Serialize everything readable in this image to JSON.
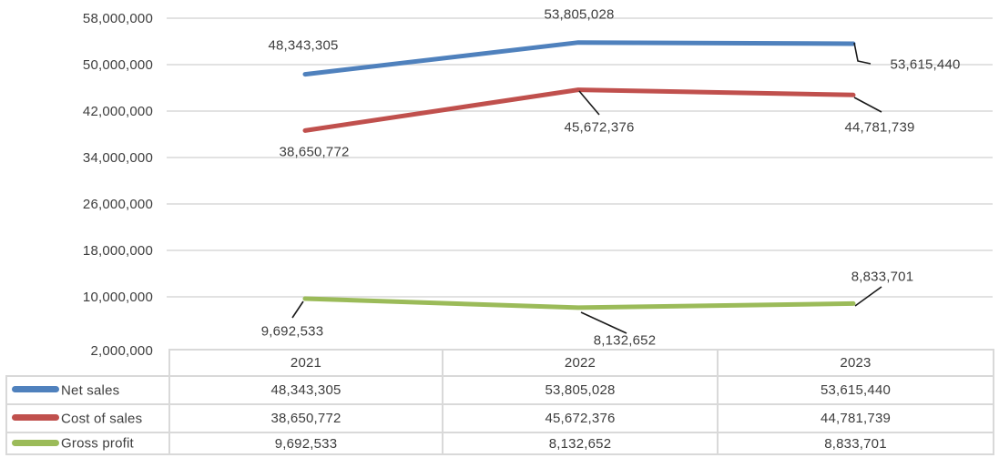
{
  "chart_data": {
    "type": "line",
    "categories": [
      "2021",
      "2022",
      "2023"
    ],
    "series": [
      {
        "name": "Net sales",
        "color": "#4F81BD",
        "values": [
          48343305,
          53805028,
          53615440
        ],
        "labels": [
          "48,343,305",
          "53,805,028",
          "53,615,440"
        ]
      },
      {
        "name": "Cost of sales",
        "color": "#C0504D",
        "values": [
          38650772,
          45672376,
          44781739
        ],
        "labels": [
          "38,650,772",
          "45,672,376",
          "44,781,739"
        ]
      },
      {
        "name": "Gross profit",
        "color": "#9BBB59",
        "values": [
          9692533,
          8132652,
          8833701
        ],
        "labels": [
          "9,692,533",
          "8,132,652",
          "8,833,701"
        ]
      }
    ],
    "title": "",
    "xlabel": "",
    "ylabel": "",
    "ylim": [
      2000000,
      58000000
    ],
    "y_tick_step": 8000000,
    "y_tick_labels": [
      "58,000,000",
      "50,000,000",
      "42,000,000",
      "34,000,000",
      "26,000,000",
      "18,000,000",
      "10,000,000",
      "2,000,000"
    ],
    "grid": true,
    "legend_position": "table-rows-left",
    "data_table": {
      "column_headers": [
        "2021",
        "2022",
        "2023"
      ],
      "rows": [
        {
          "label": "Net sales",
          "cells": [
            "48,343,305",
            "53,805,028",
            "53,615,440"
          ]
        },
        {
          "label": "Cost of sales",
          "cells": [
            "38,650,772",
            "45,672,376",
            "44,781,739"
          ]
        },
        {
          "label": "Gross profit",
          "cells": [
            "9,692,533",
            "8,132,652",
            "8,833,701"
          ]
        }
      ]
    },
    "colors": {
      "gridline": "#D9D9D9",
      "table_border": "#D9D9D9",
      "text": "#3D3D3D",
      "leader_line": "#1A1A1A"
    }
  }
}
